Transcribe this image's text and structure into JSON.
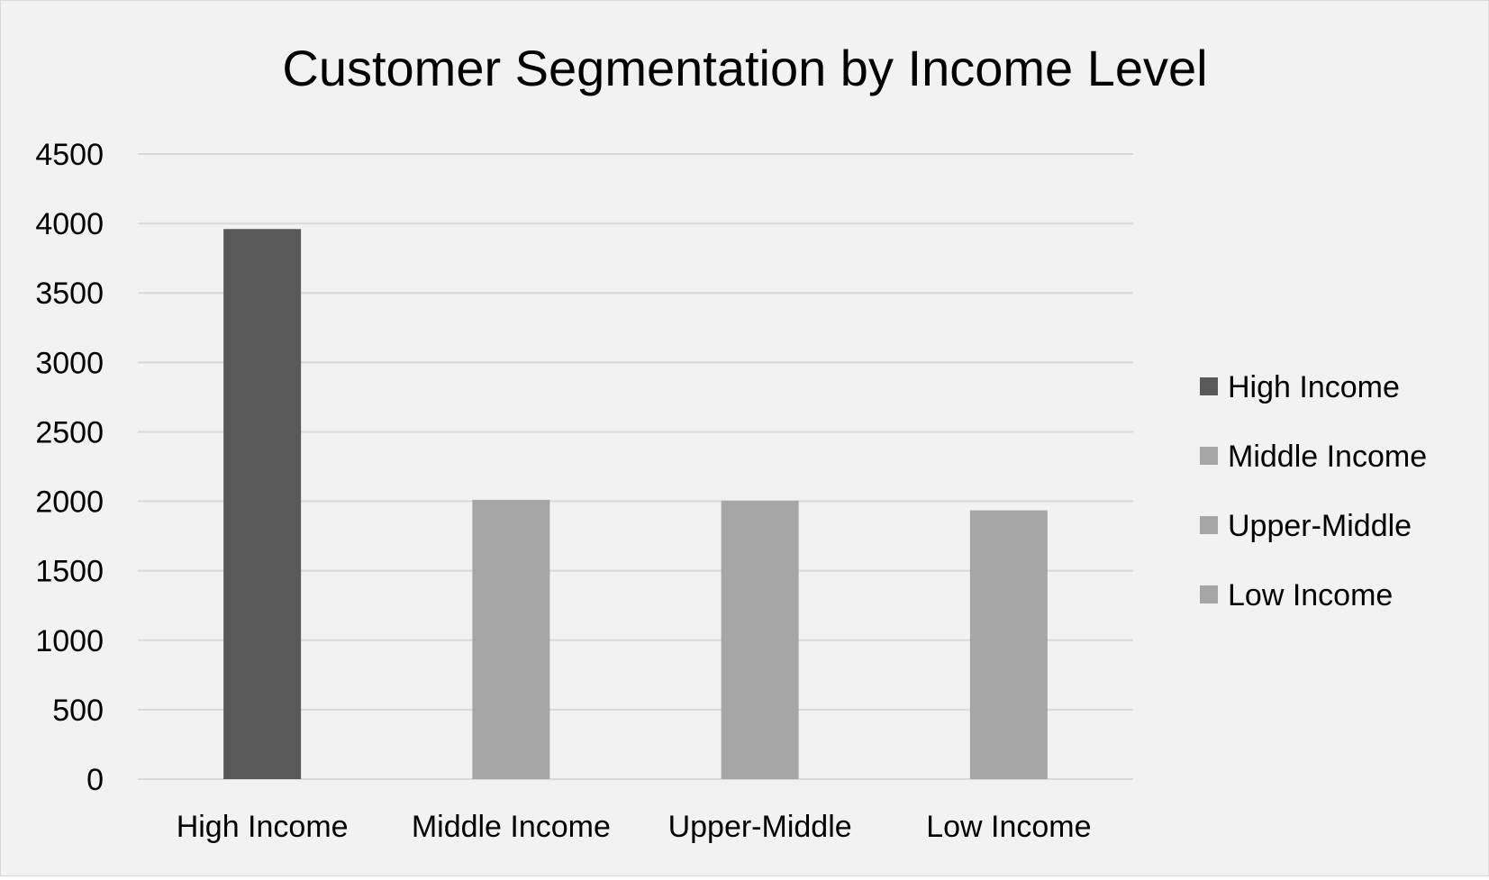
{
  "chart_data": {
    "type": "bar",
    "title": "Customer Segmentation by Income Level",
    "xlabel": "",
    "ylabel": "",
    "categories": [
      "High Income",
      "Middle Income",
      "Upper-Middle",
      "Low Income"
    ],
    "values": [
      3960,
      2010,
      2005,
      1935
    ],
    "bar_colors": [
      "#595959",
      "#a6a6a6",
      "#a6a6a6",
      "#a6a6a6"
    ],
    "ylim": [
      0,
      4500
    ],
    "yticks": [
      0,
      500,
      1000,
      1500,
      2000,
      2500,
      3000,
      3500,
      4000,
      4500
    ],
    "grid": true,
    "legend": {
      "placement": "right",
      "entries": [
        {
          "label": "High Income",
          "color": "#595959"
        },
        {
          "label": "Middle Income",
          "color": "#a6a6a6"
        },
        {
          "label": "Upper-Middle",
          "color": "#a6a6a6"
        },
        {
          "label": "Low Income",
          "color": "#a6a6a6"
        }
      ]
    },
    "colors": {
      "background": "#f2f2f2",
      "gridline": "#d9d9d9",
      "text": "#000000"
    }
  }
}
